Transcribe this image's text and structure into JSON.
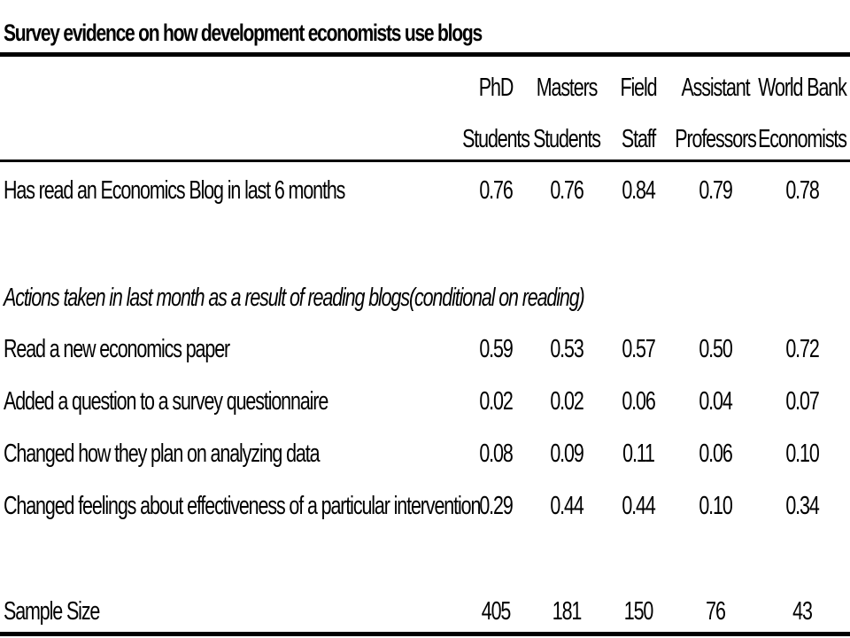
{
  "title": "Survey evidence on how development economists use blogs",
  "columns": [
    {
      "line1": "PhD",
      "line2": "Students"
    },
    {
      "line1": "Masters",
      "line2": "Students"
    },
    {
      "line1": "Field",
      "line2": "Staff"
    },
    {
      "line1": "Assistant",
      "line2": "Professors"
    },
    {
      "line1": "World Bank",
      "line2": "Economists"
    }
  ],
  "rows": [
    {
      "label": "Has read an Economics Blog in last 6 months",
      "values": [
        "0.76",
        "0.76",
        "0.84",
        "0.79",
        "0.78"
      ]
    }
  ],
  "section": {
    "heading": "Actions taken in last month as a result of reading blogs(conditional on reading)",
    "rows": [
      {
        "label": "Read a new economics paper",
        "values": [
          "0.59",
          "0.53",
          "0.57",
          "0.50",
          "0.72"
        ]
      },
      {
        "label": "Added a question to a survey questionnaire",
        "values": [
          "0.02",
          "0.02",
          "0.06",
          "0.04",
          "0.07"
        ]
      },
      {
        "label": "Changed how they plan on analyzing data",
        "values": [
          "0.08",
          "0.09",
          "0.11",
          "0.06",
          "0.10"
        ]
      },
      {
        "label": "Changed feelings about effectiveness of a particular intervention",
        "values": [
          "0.29",
          "0.44",
          "0.44",
          "0.10",
          "0.34"
        ]
      }
    ]
  },
  "sample": {
    "label": "Sample Size",
    "values": [
      "405",
      "181",
      "150",
      "76",
      "43"
    ]
  }
}
